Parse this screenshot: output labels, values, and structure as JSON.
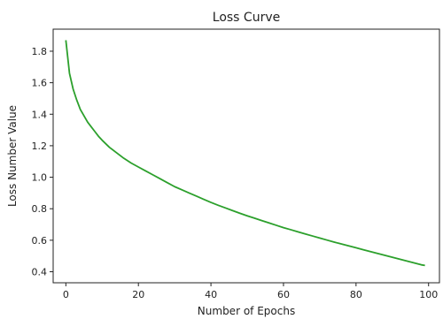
{
  "chart_data": {
    "type": "line",
    "title": "Loss Curve",
    "xlabel": "Number of Epochs",
    "ylabel": "Loss Number Value",
    "xlim": [
      -3.5,
      103
    ],
    "ylim": [
      0.33,
      1.94
    ],
    "xticks": [
      0,
      20,
      40,
      60,
      80,
      100
    ],
    "yticks": [
      0.4,
      0.6,
      0.8,
      1.0,
      1.2,
      1.4,
      1.6,
      1.8
    ],
    "xtick_labels": [
      "0",
      "20",
      "40",
      "60",
      "80",
      "100"
    ],
    "ytick_labels": [
      "0.4",
      "0.6",
      "0.8",
      "1.0",
      "1.2",
      "1.4",
      "1.6",
      "1.8"
    ],
    "grid": false,
    "series": [
      {
        "color": "#2ca02c",
        "x": [
          0,
          1,
          2,
          3,
          4,
          5,
          6,
          7,
          8,
          9,
          10,
          12,
          14,
          16,
          18,
          20,
          22,
          24,
          26,
          28,
          30,
          32,
          34,
          36,
          38,
          40,
          42,
          44,
          46,
          48,
          50,
          52,
          54,
          56,
          58,
          60,
          62,
          64,
          66,
          68,
          70,
          72,
          74,
          76,
          78,
          80,
          82,
          84,
          86,
          88,
          90,
          92,
          94,
          96,
          98,
          99
        ],
        "y": [
          1.87,
          1.66,
          1.56,
          1.49,
          1.43,
          1.39,
          1.35,
          1.32,
          1.29,
          1.26,
          1.235,
          1.19,
          1.155,
          1.12,
          1.09,
          1.065,
          1.04,
          1.015,
          0.99,
          0.965,
          0.94,
          0.92,
          0.9,
          0.88,
          0.86,
          0.84,
          0.822,
          0.805,
          0.788,
          0.771,
          0.755,
          0.74,
          0.725,
          0.71,
          0.695,
          0.68,
          0.667,
          0.653,
          0.64,
          0.627,
          0.614,
          0.601,
          0.588,
          0.576,
          0.564,
          0.552,
          0.54,
          0.528,
          0.516,
          0.504,
          0.492,
          0.48,
          0.468,
          0.456,
          0.444,
          0.44
        ]
      }
    ]
  }
}
